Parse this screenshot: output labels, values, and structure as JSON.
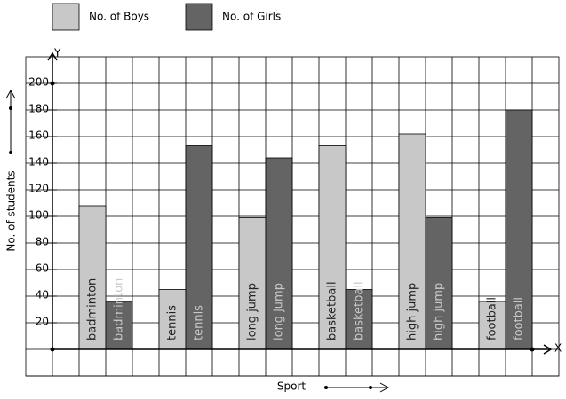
{
  "chart_data": {
    "type": "bar",
    "x_label": "Sport",
    "y_label": "No. of students",
    "x_axis_name": "X",
    "y_axis_name": "Y",
    "categories": [
      "badminton",
      "tennis",
      "long jump",
      "basketball",
      "high jump",
      "football"
    ],
    "series": [
      {
        "name": "No. of Boys",
        "color": "#c8c8c8",
        "values": [
          108,
          45,
          99,
          153,
          162,
          36
        ]
      },
      {
        "name": "No. of Girls",
        "color": "#646464",
        "values": [
          36,
          153,
          144,
          45,
          99,
          180
        ]
      }
    ],
    "ylim": [
      0,
      220
    ],
    "yticks": [
      20,
      40,
      60,
      80,
      100,
      120,
      140,
      160,
      180,
      200
    ],
    "grid": true
  }
}
